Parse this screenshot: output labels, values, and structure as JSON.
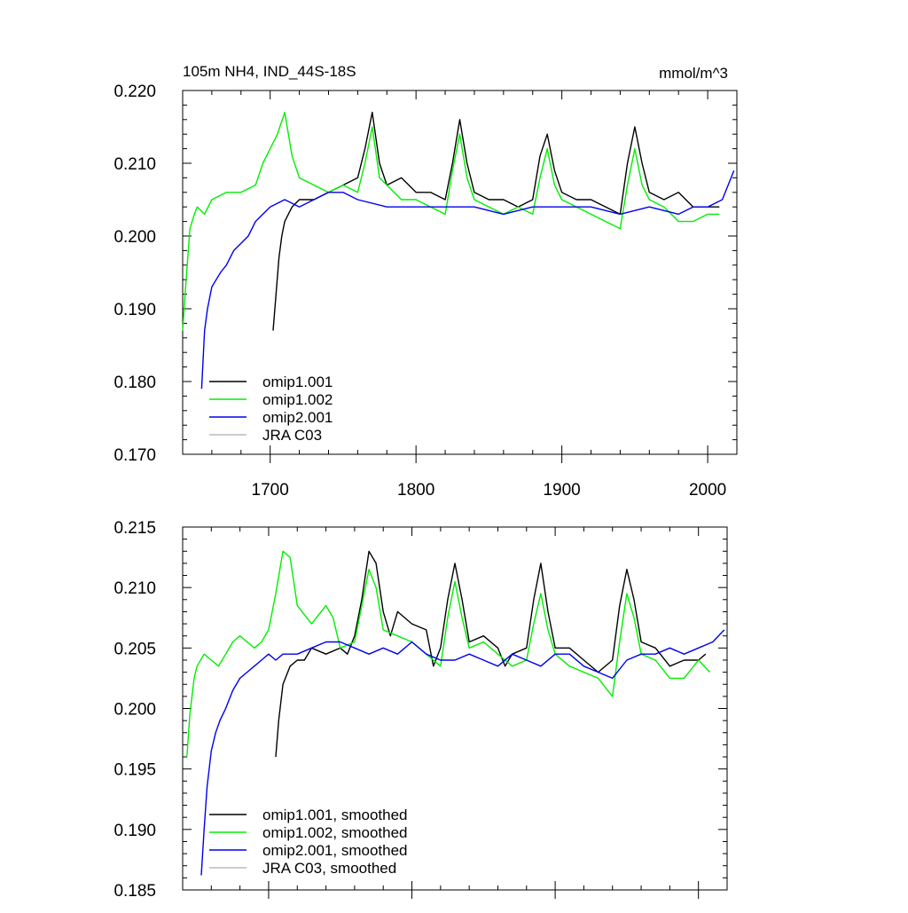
{
  "chart_data": [
    {
      "type": "line",
      "title": "105m NH4, IND_44S-18S",
      "units": "mmol/m^3",
      "xlim": [
        1640,
        2020
      ],
      "ylim": [
        0.17,
        0.22
      ],
      "x_ticks": [
        1700,
        1800,
        1900,
        2000
      ],
      "x_tick_labels": [
        "1700",
        "1800",
        "1900",
        "2000"
      ],
      "y_ticks": [
        0.17,
        0.18,
        0.19,
        0.2,
        0.21,
        0.22
      ],
      "y_tick_labels": [
        "0.170",
        "0.180",
        "0.190",
        "0.200",
        "0.210",
        "0.220"
      ],
      "legend": "bottom-left",
      "series": [
        {
          "name": "omip1.001",
          "color": "#000000",
          "x": [
            1702,
            1704,
            1706,
            1708,
            1710,
            1715,
            1720,
            1730,
            1740,
            1750,
            1760,
            1765,
            1770,
            1775,
            1780,
            1790,
            1800,
            1810,
            1820,
            1825,
            1830,
            1835,
            1840,
            1850,
            1860,
            1870,
            1880,
            1885,
            1890,
            1895,
            1900,
            1910,
            1920,
            1930,
            1940,
            1945,
            1950,
            1955,
            1960,
            1970,
            1980,
            1990,
            2000,
            2008
          ],
          "y": [
            0.187,
            0.192,
            0.197,
            0.2,
            0.202,
            0.204,
            0.205,
            0.205,
            0.206,
            0.207,
            0.208,
            0.212,
            0.217,
            0.21,
            0.207,
            0.208,
            0.206,
            0.206,
            0.205,
            0.21,
            0.216,
            0.21,
            0.206,
            0.205,
            0.205,
            0.204,
            0.205,
            0.211,
            0.214,
            0.209,
            0.206,
            0.205,
            0.205,
            0.204,
            0.203,
            0.21,
            0.215,
            0.21,
            0.206,
            0.205,
            0.206,
            0.204,
            0.204,
            0.204
          ]
        },
        {
          "name": "omip1.002",
          "color": "#00ee00",
          "x": [
            1640,
            1642,
            1645,
            1648,
            1650,
            1655,
            1660,
            1670,
            1680,
            1690,
            1695,
            1700,
            1705,
            1710,
            1715,
            1720,
            1730,
            1740,
            1750,
            1760,
            1765,
            1770,
            1775,
            1780,
            1790,
            1800,
            1810,
            1820,
            1825,
            1830,
            1835,
            1840,
            1850,
            1860,
            1870,
            1880,
            1885,
            1890,
            1895,
            1900,
            1910,
            1920,
            1930,
            1940,
            1945,
            1950,
            1955,
            1960,
            1970,
            1980,
            1990,
            2000,
            2008
          ],
          "y": [
            0.187,
            0.193,
            0.201,
            0.203,
            0.204,
            0.203,
            0.205,
            0.206,
            0.206,
            0.207,
            0.21,
            0.212,
            0.214,
            0.217,
            0.211,
            0.208,
            0.207,
            0.206,
            0.207,
            0.206,
            0.21,
            0.215,
            0.208,
            0.207,
            0.205,
            0.205,
            0.204,
            0.203,
            0.209,
            0.214,
            0.208,
            0.205,
            0.204,
            0.203,
            0.204,
            0.203,
            0.208,
            0.212,
            0.207,
            0.205,
            0.204,
            0.203,
            0.202,
            0.201,
            0.207,
            0.212,
            0.207,
            0.205,
            0.204,
            0.202,
            0.202,
            0.203,
            0.203
          ]
        },
        {
          "name": "omip2.001",
          "color": "#0000ee",
          "x": [
            1653,
            1655,
            1657,
            1660,
            1663,
            1666,
            1670,
            1675,
            1680,
            1685,
            1690,
            1695,
            1700,
            1710,
            1720,
            1730,
            1740,
            1750,
            1760,
            1780,
            1800,
            1820,
            1840,
            1860,
            1880,
            1900,
            1920,
            1940,
            1960,
            1980,
            1990,
            2000,
            2010,
            2018
          ],
          "y": [
            0.179,
            0.187,
            0.19,
            0.193,
            0.194,
            0.195,
            0.196,
            0.198,
            0.199,
            0.2,
            0.202,
            0.203,
            0.204,
            0.205,
            0.204,
            0.205,
            0.206,
            0.206,
            0.205,
            0.204,
            0.204,
            0.204,
            0.204,
            0.203,
            0.204,
            0.204,
            0.204,
            0.203,
            0.204,
            0.203,
            0.204,
            0.204,
            0.205,
            0.209
          ]
        },
        {
          "name": "JRA C03",
          "color": "#bbbbbb",
          "x": [],
          "y": []
        }
      ]
    },
    {
      "type": "line",
      "title": "",
      "xlim": [
        1640,
        2020
      ],
      "ylim": [
        0.185,
        0.215
      ],
      "x_ticks": [
        1700,
        1800,
        1900,
        2000
      ],
      "x_tick_labels": [],
      "y_ticks": [
        0.185,
        0.19,
        0.195,
        0.2,
        0.205,
        0.21,
        0.215
      ],
      "y_tick_labels": [
        "0.185",
        "0.190",
        "0.195",
        "0.200",
        "0.205",
        "0.210",
        "0.215"
      ],
      "legend": "bottom-left",
      "series": [
        {
          "name": "omip1.001, smoothed",
          "color": "#000000",
          "x": [
            1705,
            1707,
            1710,
            1715,
            1720,
            1725,
            1730,
            1740,
            1750,
            1755,
            1760,
            1765,
            1770,
            1775,
            1780,
            1785,
            1790,
            1800,
            1810,
            1815,
            1820,
            1825,
            1830,
            1835,
            1840,
            1850,
            1860,
            1865,
            1870,
            1880,
            1885,
            1890,
            1895,
            1900,
            1910,
            1920,
            1930,
            1940,
            1945,
            1950,
            1955,
            1960,
            1970,
            1980,
            1990,
            2000,
            2005
          ],
          "y": [
            0.196,
            0.199,
            0.202,
            0.2035,
            0.204,
            0.204,
            0.205,
            0.2045,
            0.205,
            0.2045,
            0.206,
            0.209,
            0.213,
            0.212,
            0.208,
            0.206,
            0.208,
            0.207,
            0.2065,
            0.2035,
            0.205,
            0.209,
            0.212,
            0.209,
            0.2055,
            0.206,
            0.205,
            0.2035,
            0.2045,
            0.205,
            0.209,
            0.212,
            0.208,
            0.205,
            0.205,
            0.204,
            0.203,
            0.204,
            0.2085,
            0.2115,
            0.209,
            0.2055,
            0.205,
            0.2035,
            0.204,
            0.204,
            0.2045
          ]
        },
        {
          "name": "omip1.002, smoothed",
          "color": "#00ee00",
          "x": [
            1643,
            1645,
            1648,
            1650,
            1655,
            1660,
            1665,
            1670,
            1675,
            1680,
            1685,
            1690,
            1695,
            1700,
            1705,
            1710,
            1715,
            1720,
            1730,
            1740,
            1745,
            1750,
            1760,
            1765,
            1770,
            1775,
            1780,
            1790,
            1800,
            1810,
            1820,
            1825,
            1830,
            1835,
            1840,
            1850,
            1860,
            1870,
            1880,
            1885,
            1890,
            1895,
            1900,
            1910,
            1920,
            1930,
            1940,
            1945,
            1950,
            1955,
            1960,
            1970,
            1980,
            1990,
            2000,
            2008
          ],
          "y": [
            0.196,
            0.1995,
            0.2025,
            0.2035,
            0.2045,
            0.204,
            0.2035,
            0.2045,
            0.2055,
            0.206,
            0.2055,
            0.205,
            0.2055,
            0.2065,
            0.2095,
            0.213,
            0.2125,
            0.2085,
            0.207,
            0.2085,
            0.2075,
            0.205,
            0.2055,
            0.2085,
            0.2115,
            0.21,
            0.2065,
            0.206,
            0.2055,
            0.2045,
            0.2035,
            0.2075,
            0.2105,
            0.2075,
            0.205,
            0.2055,
            0.2045,
            0.2035,
            0.204,
            0.207,
            0.2095,
            0.2065,
            0.2045,
            0.2035,
            0.203,
            0.2025,
            0.201,
            0.2055,
            0.2095,
            0.2075,
            0.2045,
            0.204,
            0.2025,
            0.2025,
            0.204,
            0.203
          ]
        },
        {
          "name": "omip2.001, smoothed",
          "color": "#0000ee",
          "x": [
            1653,
            1655,
            1657,
            1660,
            1663,
            1666,
            1670,
            1675,
            1680,
            1685,
            1690,
            1695,
            1700,
            1705,
            1710,
            1720,
            1730,
            1740,
            1750,
            1760,
            1770,
            1780,
            1790,
            1800,
            1810,
            1820,
            1830,
            1840,
            1850,
            1860,
            1870,
            1880,
            1890,
            1900,
            1910,
            1920,
            1930,
            1940,
            1950,
            1960,
            1970,
            1980,
            1990,
            2000,
            2010,
            2018
          ],
          "y": [
            0.1862,
            0.19,
            0.1935,
            0.1965,
            0.198,
            0.199,
            0.2,
            0.2015,
            0.2025,
            0.203,
            0.2035,
            0.204,
            0.2045,
            0.204,
            0.2045,
            0.2045,
            0.205,
            0.2055,
            0.2055,
            0.205,
            0.2045,
            0.205,
            0.2045,
            0.2055,
            0.2045,
            0.204,
            0.204,
            0.2045,
            0.204,
            0.2035,
            0.2045,
            0.204,
            0.2035,
            0.2045,
            0.2045,
            0.2035,
            0.203,
            0.2025,
            0.204,
            0.2045,
            0.2045,
            0.205,
            0.2045,
            0.205,
            0.2055,
            0.2065
          ]
        },
        {
          "name": "JRA C03, smoothed",
          "color": "#bbbbbb",
          "x": [],
          "y": []
        }
      ]
    }
  ]
}
